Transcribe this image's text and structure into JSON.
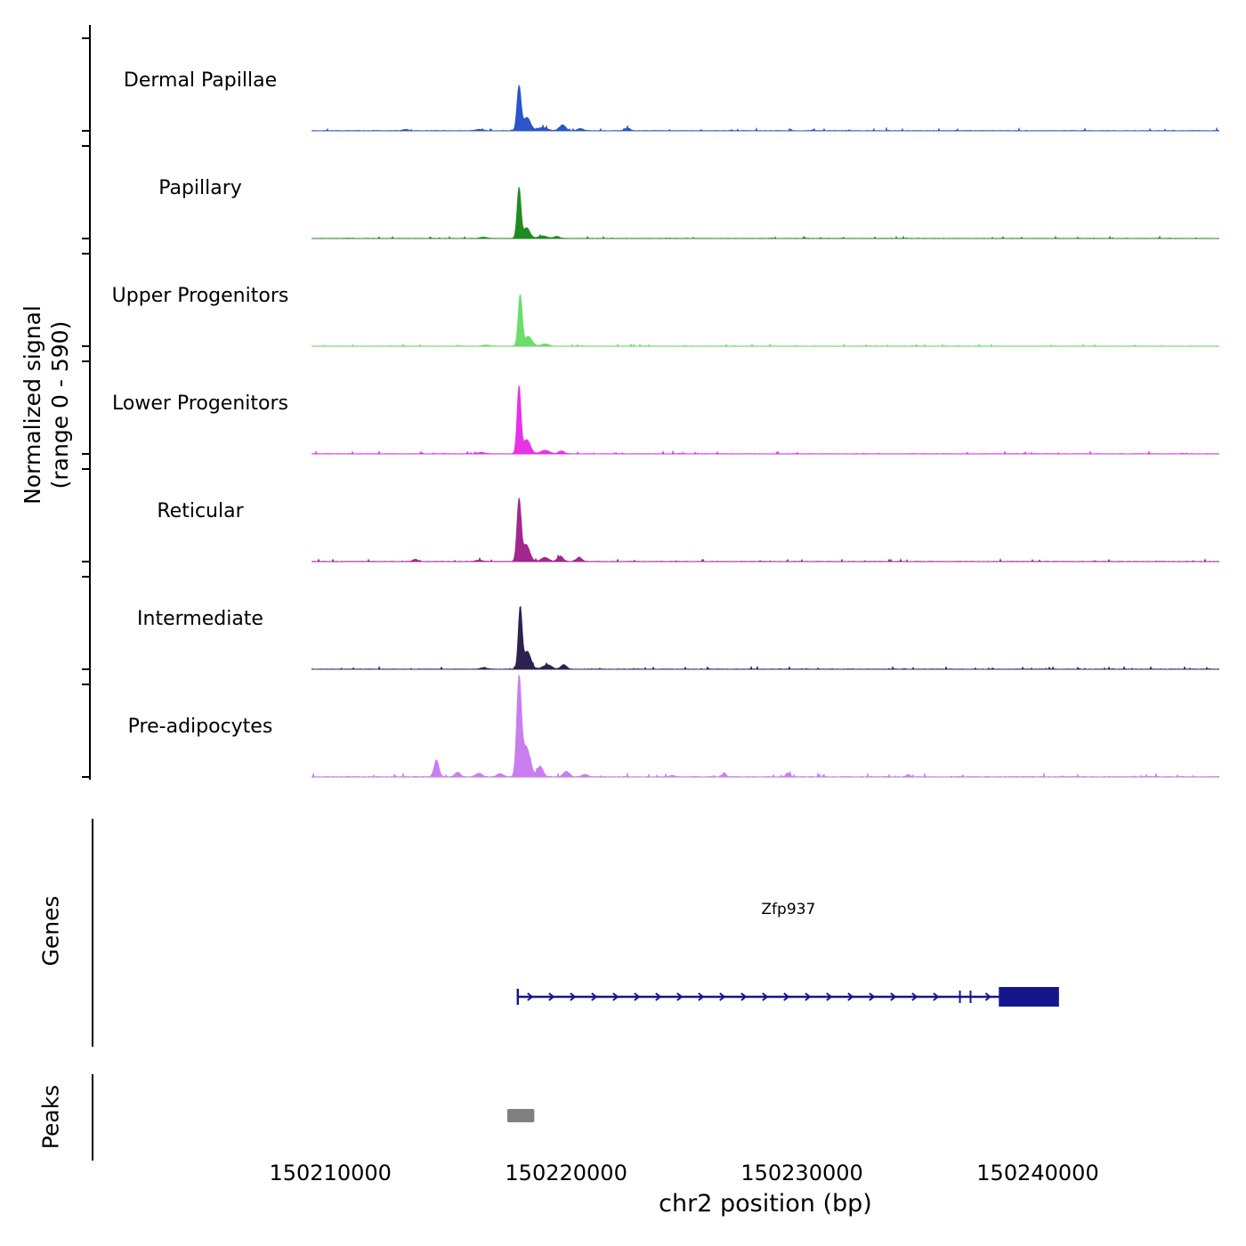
{
  "figure": {
    "y_axis_label_line1": "Normalized signal",
    "y_axis_label_line2": "(range 0 - 590)",
    "genes_section_label": "Genes",
    "peaks_section_label": "Peaks",
    "x_axis_title": "chr2 position (bp)"
  },
  "chart_data": {
    "type": "area",
    "title": "",
    "xlabel": "chr2 position (bp)",
    "ylabel": "Normalized signal (range 0 - 590)",
    "x_range_bp": [
      150209200,
      150247700
    ],
    "y_range_per_track": [
      0,
      590
    ],
    "grid": false,
    "x_ticks": [
      {
        "bp": 150210000,
        "label": "150210000"
      },
      {
        "bp": 150220000,
        "label": "150220000"
      },
      {
        "bp": 150230000,
        "label": "150230000"
      },
      {
        "bp": 150240000,
        "label": "150240000"
      }
    ],
    "tracks": [
      {
        "name": "Dermal Papillae",
        "color": "#2b55c8",
        "seed": 101,
        "noise": 7,
        "gaussians": [
          [
            150218000,
            250,
            85
          ],
          [
            150218330,
            75,
            150
          ],
          [
            150219000,
            18,
            200
          ],
          [
            150219850,
            32,
            130
          ],
          [
            150220600,
            12,
            120
          ],
          [
            150222600,
            14,
            110
          ],
          [
            150216300,
            8,
            150
          ],
          [
            150213200,
            7,
            120
          ]
        ]
      },
      {
        "name": "Papillary",
        "color": "#208b20",
        "seed": 202,
        "noise": 5,
        "gaussians": [
          [
            150218000,
            285,
            80
          ],
          [
            150218320,
            60,
            140
          ],
          [
            150219000,
            14,
            180
          ],
          [
            150219600,
            12,
            120
          ],
          [
            150216500,
            7,
            140
          ]
        ]
      },
      {
        "name": "Upper Progenitors",
        "color": "#6ade6a",
        "seed": 303,
        "noise": 5,
        "gaussians": [
          [
            150218050,
            290,
            85
          ],
          [
            150218400,
            55,
            150
          ],
          [
            150219100,
            12,
            160
          ],
          [
            150216600,
            6,
            140
          ]
        ]
      },
      {
        "name": "Lower Progenitors",
        "color": "#e832e8",
        "seed": 404,
        "noise": 6,
        "gaussians": [
          [
            150218000,
            380,
            80
          ],
          [
            150218330,
            80,
            150
          ],
          [
            150219100,
            20,
            180
          ],
          [
            150219800,
            16,
            120
          ],
          [
            150216400,
            8,
            140
          ]
        ]
      },
      {
        "name": "Reticular",
        "color": "#a1278f",
        "seed": 505,
        "noise": 6,
        "gaussians": [
          [
            150218000,
            345,
            85
          ],
          [
            150218300,
            95,
            150
          ],
          [
            150219100,
            22,
            160
          ],
          [
            150219750,
            30,
            120
          ],
          [
            150220550,
            24,
            110
          ],
          [
            150213600,
            12,
            100
          ],
          [
            150216300,
            8,
            140
          ]
        ]
      },
      {
        "name": "Intermediate",
        "color": "#2d2152",
        "seed": 606,
        "noise": 6,
        "gaussians": [
          [
            150218050,
            345,
            80
          ],
          [
            150218350,
            100,
            150
          ],
          [
            150219200,
            25,
            180
          ],
          [
            150219900,
            25,
            120
          ],
          [
            150216500,
            8,
            140
          ]
        ]
      },
      {
        "name": "Pre-adipocytes",
        "color": "#c97ef0",
        "seed": 707,
        "noise": 9,
        "gaussians": [
          [
            150218000,
            540,
            95
          ],
          [
            150218300,
            170,
            170
          ],
          [
            150218900,
            60,
            120
          ],
          [
            150214500,
            95,
            100
          ],
          [
            150215400,
            26,
            110
          ],
          [
            150216300,
            20,
            130
          ],
          [
            150217200,
            18,
            120
          ],
          [
            150220000,
            30,
            130
          ],
          [
            150220800,
            14,
            110
          ],
          [
            150226700,
            22,
            80
          ],
          [
            150229400,
            22,
            80
          ],
          [
            150234500,
            12,
            80
          ],
          [
            150224500,
            8,
            100
          ]
        ]
      }
    ],
    "gene": {
      "name": "Zfp937",
      "color": "#16168c",
      "strand": "+",
      "start_bp": 150217950,
      "end_bp": 150240900,
      "exon_start_bp": 150238350,
      "exon_end_bp": 150240900,
      "inner_ticks_bp": [
        150236700,
        150237150
      ]
    },
    "peaks_track": {
      "color": "#808080",
      "regions": [
        {
          "start_bp": 150217500,
          "end_bp": 150218650
        }
      ]
    }
  }
}
